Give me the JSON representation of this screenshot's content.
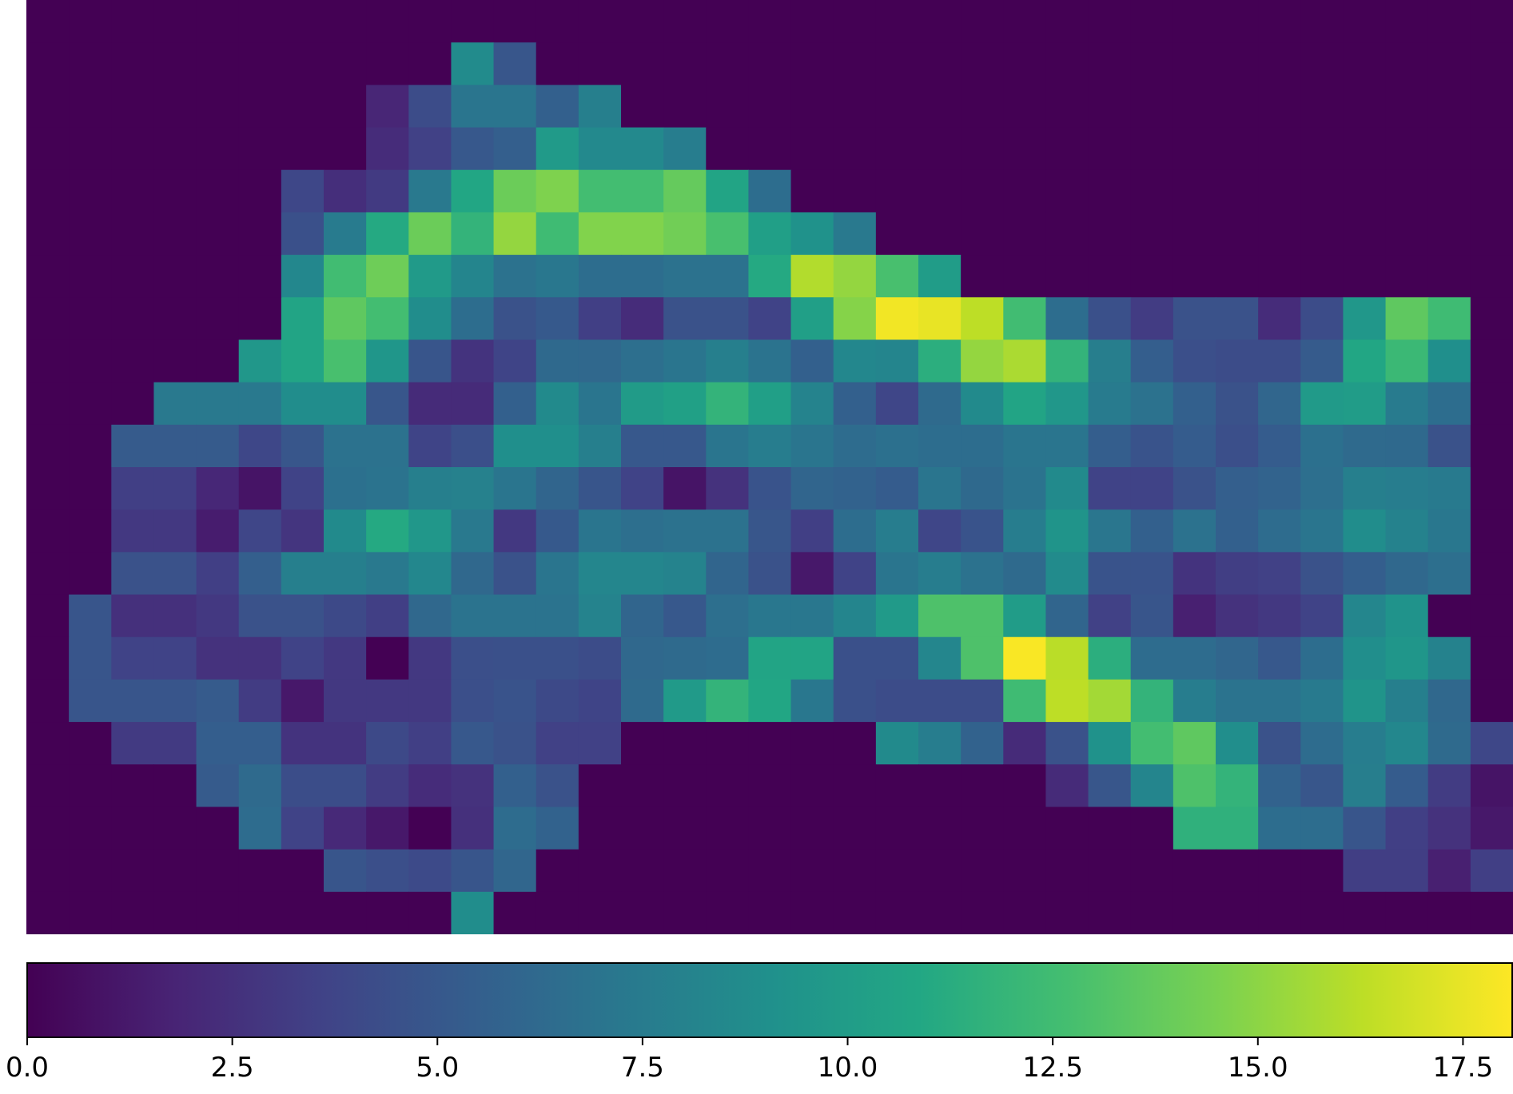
{
  "chart_data": {
    "type": "heatmap",
    "title": "",
    "xlabel": "",
    "ylabel": "",
    "colormap": "viridis",
    "vmin": 0,
    "vmax": 18.1,
    "colorbar": {
      "orientation": "horizontal",
      "placement": "bottom",
      "ticks": [
        0.0,
        2.5,
        5.0,
        7.5,
        10.0,
        12.5,
        15.0,
        17.5
      ],
      "tick_labels": [
        "0.0",
        "2.5",
        "5.0",
        "7.5",
        "10.0",
        "12.5",
        "15.0",
        "17.5"
      ]
    },
    "n_cols": 35,
    "n_rows": 22,
    "z": [
      [
        0,
        0,
        0,
        0,
        0,
        0,
        0,
        0,
        0,
        0,
        0,
        0,
        0,
        0,
        0,
        0,
        0,
        0,
        0,
        0,
        0,
        0,
        0,
        0,
        0,
        0,
        0,
        0,
        0,
        0,
        0,
        0,
        0,
        0,
        0
      ],
      [
        0,
        0,
        0,
        0,
        0,
        0,
        0,
        0,
        0,
        0,
        8.7,
        4.9,
        0,
        0,
        0,
        0,
        0,
        0,
        0,
        0,
        0,
        0,
        0,
        0,
        0,
        0,
        0,
        0,
        0,
        0,
        0,
        0,
        0,
        0,
        0
      ],
      [
        0,
        0,
        0,
        0,
        0,
        0,
        0,
        0,
        1.9,
        4.2,
        7.0,
        7.0,
        5.6,
        7.8,
        0,
        0,
        0,
        0,
        0,
        0,
        0,
        0,
        0,
        0,
        0,
        0,
        0,
        0,
        0,
        0,
        0,
        0,
        0,
        0,
        0
      ],
      [
        0,
        0,
        0,
        0,
        0,
        0,
        0,
        0,
        2.3,
        3.5,
        5.0,
        5.5,
        9.8,
        8.5,
        8.5,
        7.6,
        0,
        0,
        0,
        0,
        0,
        0,
        0,
        0,
        0,
        0,
        0,
        0,
        0,
        0,
        0,
        0,
        0,
        0,
        0
      ],
      [
        0,
        0,
        0,
        0,
        0,
        0,
        3.9,
        2.4,
        3.1,
        7.3,
        10.8,
        14.0,
        14.6,
        12.6,
        12.6,
        13.8,
        10.6,
        6.5,
        0,
        0,
        0,
        0,
        0,
        0,
        0,
        0,
        0,
        0,
        0,
        0,
        0,
        0,
        0,
        0,
        0
      ],
      [
        0,
        0,
        0,
        0,
        0,
        0,
        4.5,
        7.5,
        11.0,
        14.0,
        11.8,
        15.2,
        12.4,
        14.7,
        14.7,
        14.2,
        12.8,
        10.2,
        9.2,
        7.3,
        0,
        0,
        0,
        0,
        0,
        0,
        0,
        0,
        0,
        0,
        0,
        0,
        0,
        0,
        0
      ],
      [
        0,
        0,
        0,
        0,
        0,
        0,
        8.4,
        12.5,
        14.1,
        9.8,
        8.2,
        6.8,
        7.2,
        6.5,
        6.5,
        6.8,
        6.8,
        11.0,
        16.0,
        15.2,
        12.8,
        10.0,
        0,
        0,
        0,
        0,
        0,
        0,
        0,
        0,
        0,
        0,
        0,
        0,
        0
      ],
      [
        0,
        0,
        0,
        0,
        0,
        0,
        10.6,
        13.6,
        12.6,
        8.8,
        6.5,
        4.6,
        5.1,
        3.4,
        2.3,
        4.6,
        4.6,
        3.6,
        10.2,
        14.8,
        17.8,
        17.5,
        16.3,
        12.5,
        6.5,
        4.5,
        3.2,
        4.6,
        4.6,
        2.3,
        4.2,
        9.6,
        13.6,
        12.4,
        0
      ],
      [
        0,
        0,
        0,
        0,
        0,
        9.6,
        10.7,
        12.8,
        9.5,
        4.8,
        2.7,
        3.7,
        6.2,
        6.1,
        6.6,
        7.0,
        7.8,
        6.9,
        5.6,
        8.4,
        8.2,
        11.4,
        15.2,
        15.8,
        11.8,
        7.7,
        5.4,
        4.4,
        4.2,
        4.2,
        5.2,
        10.8,
        12.2,
        9.0,
        0
      ],
      [
        0,
        0,
        0,
        7.3,
        7.3,
        7.3,
        8.8,
        8.8,
        4.9,
        2.2,
        2.2,
        5.6,
        8.6,
        7.0,
        9.9,
        10.3,
        11.8,
        10.2,
        8.1,
        5.6,
        3.8,
        6.3,
        8.6,
        10.6,
        9.6,
        7.5,
        6.8,
        5.6,
        4.6,
        6.0,
        9.8,
        10.0,
        7.5,
        6.5,
        0
      ],
      [
        0,
        0,
        5.2,
        5.2,
        5.2,
        3.9,
        4.9,
        6.8,
        6.8,
        3.7,
        4.4,
        9.0,
        9.0,
        7.8,
        5.0,
        5.0,
        7.0,
        7.6,
        7.0,
        6.4,
        6.7,
        6.5,
        6.5,
        7.0,
        7.0,
        5.4,
        4.7,
        5.3,
        4.4,
        5.3,
        6.7,
        6.3,
        6.2,
        4.6,
        0
      ],
      [
        0,
        0,
        3.4,
        3.4,
        2.0,
        1.0,
        3.6,
        6.7,
        6.9,
        7.8,
        7.9,
        7.0,
        5.9,
        4.8,
        3.6,
        1.0,
        2.6,
        4.7,
        5.9,
        5.7,
        5.3,
        7.0,
        6.2,
        6.9,
        8.6,
        3.6,
        3.6,
        4.6,
        5.5,
        5.8,
        6.6,
        7.8,
        7.6,
        7.4,
        0
      ],
      [
        0,
        0,
        3.0,
        3.0,
        1.4,
        3.8,
        2.8,
        8.6,
        11.0,
        9.6,
        7.3,
        3.0,
        5.1,
        7.0,
        6.6,
        6.8,
        6.8,
        4.9,
        3.4,
        6.5,
        7.6,
        3.8,
        4.7,
        7.6,
        9.4,
        7.1,
        5.6,
        6.8,
        5.6,
        6.4,
        7.0,
        8.8,
        8.0,
        7.2,
        0
      ],
      [
        0,
        0,
        4.6,
        4.6,
        3.4,
        5.5,
        7.8,
        7.8,
        7.3,
        8.4,
        6.1,
        4.6,
        7.0,
        8.3,
        8.3,
        8.1,
        5.9,
        4.6,
        1.2,
        3.6,
        7.0,
        7.6,
        6.8,
        6.3,
        8.7,
        4.7,
        4.7,
        2.7,
        3.3,
        3.5,
        4.6,
        5.4,
        6.1,
        6.6,
        0
      ],
      [
        0,
        4.8,
        2.5,
        2.5,
        3.0,
        4.6,
        4.6,
        4.0,
        3.4,
        6.1,
        6.9,
        6.9,
        6.9,
        8.1,
        5.9,
        5.0,
        6.6,
        7.2,
        7.2,
        8.2,
        9.8,
        13.0,
        13.0,
        10.0,
        5.9,
        3.5,
        4.8,
        1.6,
        2.6,
        3.0,
        3.6,
        8.3,
        9.3,
        0,
        0
      ],
      [
        0,
        4.8,
        3.6,
        3.6,
        2.6,
        2.6,
        3.6,
        3.0,
        0,
        3.0,
        4.4,
        4.5,
        4.5,
        4.2,
        6.1,
        6.3,
        6.4,
        10.6,
        10.6,
        4.5,
        4.5,
        8.3,
        13.0,
        18.0,
        16.2,
        11.4,
        6.4,
        6.4,
        6.0,
        5.0,
        6.5,
        8.9,
        9.5,
        8.0,
        0
      ],
      [
        0,
        4.8,
        4.8,
        4.8,
        5.2,
        3.2,
        1.2,
        3.0,
        3.0,
        3.0,
        4.4,
        4.7,
        4.0,
        3.7,
        6.3,
        9.8,
        11.8,
        10.8,
        7.2,
        4.5,
        4.2,
        4.2,
        4.2,
        12.4,
        16.3,
        15.6,
        11.8,
        7.6,
        6.9,
        6.9,
        7.4,
        9.4,
        7.8,
        6.1,
        0
      ],
      [
        0,
        0,
        3.1,
        3.1,
        5.4,
        5.4,
        2.7,
        2.7,
        4.0,
        3.4,
        5.0,
        4.6,
        3.5,
        3.5,
        0,
        0,
        0,
        0,
        0,
        0,
        8.6,
        7.6,
        5.7,
        2.2,
        4.6,
        9.2,
        12.6,
        13.6,
        8.9,
        4.6,
        6.4,
        7.6,
        8.4,
        6.3,
        3.9
      ],
      [
        0,
        0,
        0,
        0,
        5.2,
        6.3,
        4.3,
        4.3,
        3.2,
        2.3,
        2.6,
        5.6,
        4.6,
        0,
        0,
        0,
        0,
        0,
        0,
        0,
        0,
        0,
        0,
        0,
        2.2,
        4.9,
        8.2,
        13.0,
        11.8,
        5.7,
        4.9,
        7.7,
        5.3,
        3.2,
        1.0
      ],
      [
        0,
        0,
        0,
        0,
        0,
        6.4,
        3.6,
        2.1,
        1.2,
        0,
        2.5,
        6.4,
        5.7,
        0,
        0,
        0,
        0,
        0,
        0,
        0,
        0,
        0,
        0,
        0,
        0,
        0,
        0,
        11.6,
        11.6,
        6.5,
        6.5,
        4.8,
        3.4,
        2.6,
        1.2
      ],
      [
        0,
        0,
        0,
        0,
        0,
        0,
        0,
        4.8,
        4.4,
        4.1,
        4.8,
        6.0,
        0,
        0,
        0,
        0,
        0,
        0,
        0,
        0,
        0,
        0,
        0,
        0,
        0,
        0,
        0,
        0,
        0,
        0,
        0,
        3.3,
        3.3,
        1.6,
        3.4
      ],
      [
        0,
        0,
        0,
        0,
        0,
        0,
        0,
        0,
        0,
        0,
        8.8,
        0,
        0,
        0,
        0,
        0,
        0,
        0,
        0,
        0,
        0,
        0,
        0,
        0,
        0,
        0,
        0,
        0,
        0,
        0,
        0,
        0,
        0,
        0,
        0
      ]
    ]
  }
}
